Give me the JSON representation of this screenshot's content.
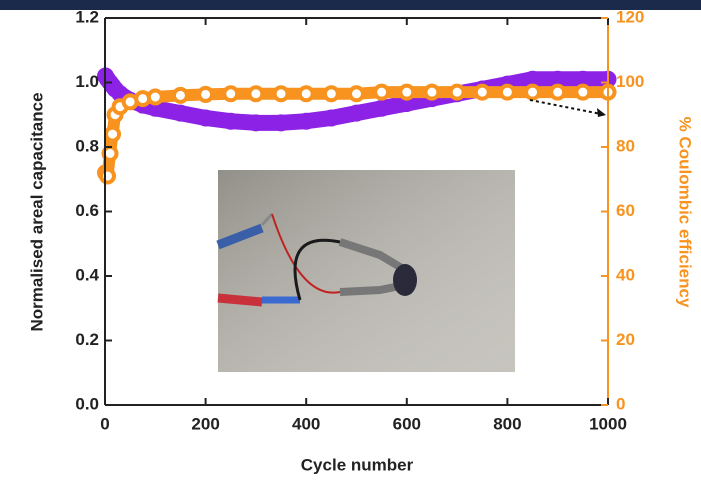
{
  "chart_data": {
    "type": "scatter",
    "x_label": "Cycle number",
    "y_label": "Normalised areal capacitance",
    "y2_label": "% Coulombic efficiency",
    "x": [
      1,
      5,
      10,
      15,
      20,
      30,
      50,
      75,
      100,
      150,
      200,
      250,
      300,
      350,
      400,
      450,
      500,
      550,
      600,
      650,
      700,
      750,
      800,
      850,
      900,
      950,
      1000
    ],
    "series": [
      {
        "color": "#8b22e6",
        "values": [
          1.02,
          1.01,
          1.0,
          0.99,
          0.98,
          0.965,
          0.945,
          0.93,
          0.92,
          0.905,
          0.89,
          0.88,
          0.875,
          0.875,
          0.88,
          0.89,
          0.905,
          0.92,
          0.935,
          0.95,
          0.965,
          0.98,
          0.995,
          1.01,
          1.01,
          1.01,
          1.01
        ]
      },
      {
        "color": "#f7931e",
        "axis": "y2",
        "values": [
          72,
          71,
          78,
          84,
          90,
          92.5,
          94,
          95,
          95.5,
          96,
          96.3,
          96.5,
          96.5,
          96.5,
          96.5,
          96.5,
          96.5,
          97,
          97,
          97,
          97,
          97,
          97,
          97,
          97,
          97,
          97
        ]
      }
    ],
    "xlim": [
      0,
      1000
    ],
    "xticks": [
      0,
      200,
      400,
      600,
      800,
      1000
    ],
    "ylim": [
      0,
      1.2
    ],
    "yticks": [
      {
        "value": 0,
        "label": "0.0"
      },
      0.2,
      0.4,
      0.6,
      0.8,
      {
        "value": 1,
        "label": "1.0"
      },
      1.2
    ],
    "y2lim": [
      0,
      120
    ],
    "y2ticks": [
      0,
      20,
      40,
      60,
      80,
      100,
      120
    ]
  }
}
